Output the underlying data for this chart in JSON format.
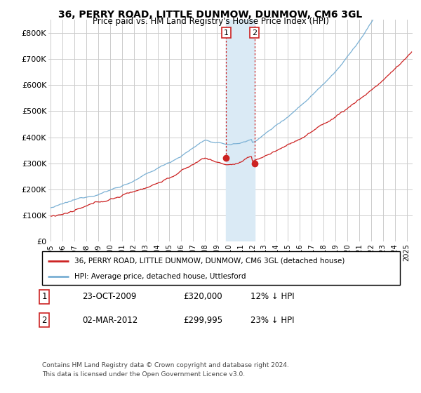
{
  "title": "36, PERRY ROAD, LITTLE DUNMOW, DUNMOW, CM6 3GL",
  "subtitle": "Price paid vs. HM Land Registry's House Price Index (HPI)",
  "legend_line1": "36, PERRY ROAD, LITTLE DUNMOW, DUNMOW, CM6 3GL (detached house)",
  "legend_line2": "HPI: Average price, detached house, Uttlesford",
  "transaction1_label": "1",
  "transaction1_date": "23-OCT-2009",
  "transaction1_price": "£320,000",
  "transaction1_hpi": "12% ↓ HPI",
  "transaction2_label": "2",
  "transaction2_date": "02-MAR-2012",
  "transaction2_price": "£299,995",
  "transaction2_hpi": "23% ↓ HPI",
  "footnote1": "Contains HM Land Registry data © Crown copyright and database right 2024.",
  "footnote2": "This data is licensed under the Open Government Licence v3.0.",
  "hpi_color": "#7ab0d4",
  "price_color": "#cc2222",
  "marker_color": "#cc2222",
  "highlight_color": "#daeaf5",
  "ylim": [
    0,
    850000
  ],
  "yticks": [
    0,
    100000,
    200000,
    300000,
    400000,
    500000,
    600000,
    700000,
    800000
  ],
  "background_color": "#ffffff",
  "grid_color": "#cccccc",
  "t1_x": 2009.79,
  "t1_y": 320000,
  "t2_x": 2012.17,
  "t2_y": 299995,
  "xmin": 1994.8,
  "xmax": 2025.5
}
